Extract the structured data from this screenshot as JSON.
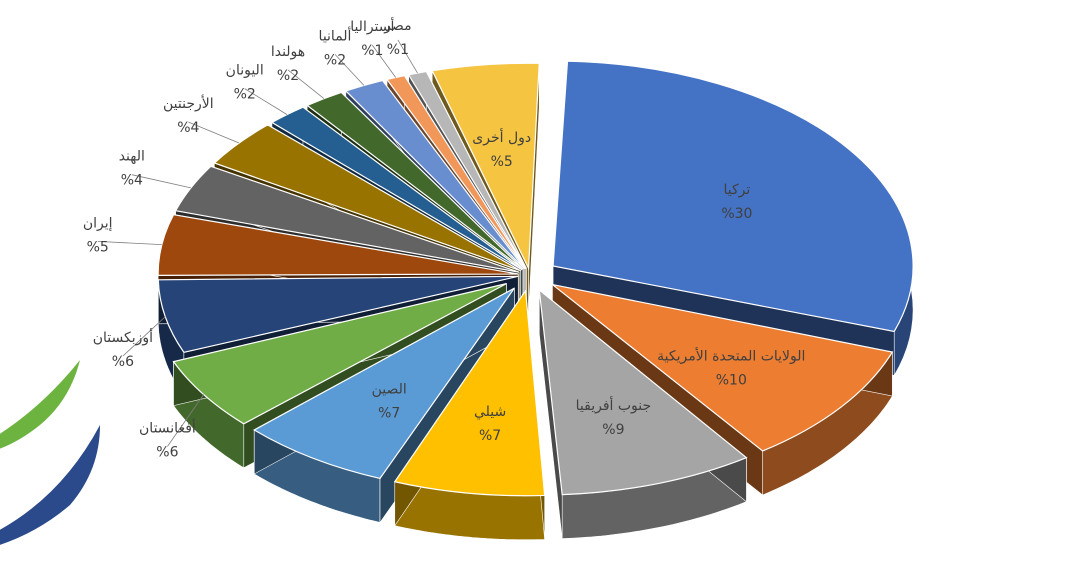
{
  "chart_data": {
    "type": "pie",
    "title": "",
    "legend": "none",
    "slices": [
      {
        "label": "تركيا",
        "value_label": "%30",
        "value": 30,
        "color": "#4472C4"
      },
      {
        "label": "الولايات المتحدة الأمريكية",
        "value_label": "%10",
        "value": 10,
        "color": "#ED7D31"
      },
      {
        "label": "جنوب أفريقيا",
        "value_label": "%9",
        "value": 9,
        "color": "#A5A5A5"
      },
      {
        "label": "شيلي",
        "value_label": "%7",
        "value": 7,
        "color": "#FFC000"
      },
      {
        "label": "الصين",
        "value_label": "%7",
        "value": 7,
        "color": "#5B9BD5"
      },
      {
        "label": "أفغانستان",
        "value_label": "%6",
        "value": 6,
        "color": "#70AD47"
      },
      {
        "label": "أوزبكستان",
        "value_label": "%6",
        "value": 6,
        "color": "#264478"
      },
      {
        "label": "إيران",
        "value_label": "%5",
        "value": 5,
        "color": "#9E480E"
      },
      {
        "label": "الهند",
        "value_label": "%4",
        "value": 4,
        "color": "#636363"
      },
      {
        "label": "الأرجنتين",
        "value_label": "%4",
        "value": 4,
        "color": "#997300"
      },
      {
        "label": "اليونان",
        "value_label": "%2",
        "value": 2,
        "color": "#255E91"
      },
      {
        "label": "هولندا",
        "value_label": "%2",
        "value": 2,
        "color": "#43682B"
      },
      {
        "label": "ألمانيا",
        "value_label": "%2",
        "value": 2,
        "color": "#698ED0"
      },
      {
        "label": "أستراليا",
        "value_label": "%1",
        "value": 1,
        "color": "#F1975A"
      },
      {
        "label": "مصر",
        "value_label": "%1",
        "value": 1,
        "color": "#B7B7B7"
      },
      {
        "label": "دول أخرى",
        "value_label": "%5",
        "value": 5,
        "color": "#F5C542"
      }
    ]
  },
  "decor": {
    "swoosh_green": "#6DB33F",
    "swoosh_blue": "#2B4A8C"
  }
}
